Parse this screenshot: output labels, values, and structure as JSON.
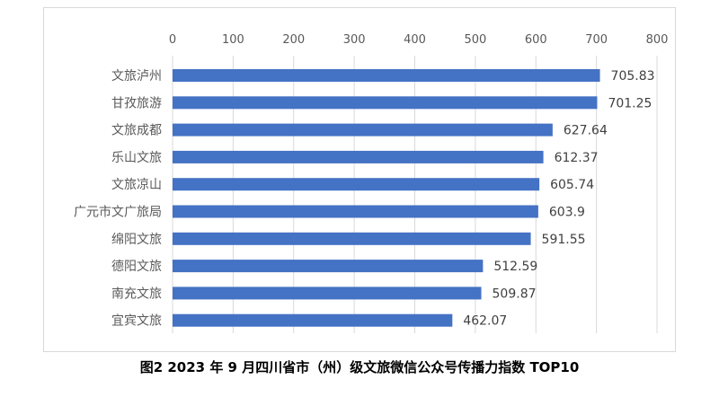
{
  "caption": "图2   2023 年 9 月四川省市（州）级文旅微信公众号传播力指数 TOP10",
  "colors": {
    "bar": "#4472C4",
    "grid": "#d9d9d9",
    "text": "#595959",
    "frame": "#d9d9d9"
  },
  "chart_data": {
    "type": "bar",
    "orientation": "horizontal",
    "categories": [
      "文旅泸州",
      "甘孜旅游",
      "文旅成都",
      "乐山文旅",
      "文旅凉山",
      "广元市文广旅局",
      "绵阳文旅",
      "德阳文旅",
      "南充文旅",
      "宜宾文旅"
    ],
    "values": [
      705.83,
      701.25,
      627.64,
      612.37,
      605.74,
      603.9,
      591.55,
      512.59,
      509.87,
      462.07
    ],
    "value_labels": [
      "705.83",
      "701.25",
      "627.64",
      "612.37",
      "605.74",
      "603.9",
      "591.55",
      "512.59",
      "509.87",
      "462.07"
    ],
    "xlim": [
      0,
      800
    ],
    "xticks": [
      "0",
      "100",
      "200",
      "300",
      "400",
      "500",
      "600",
      "700",
      "800"
    ],
    "x_axis_position": "top",
    "grid": true,
    "legend": "none"
  }
}
